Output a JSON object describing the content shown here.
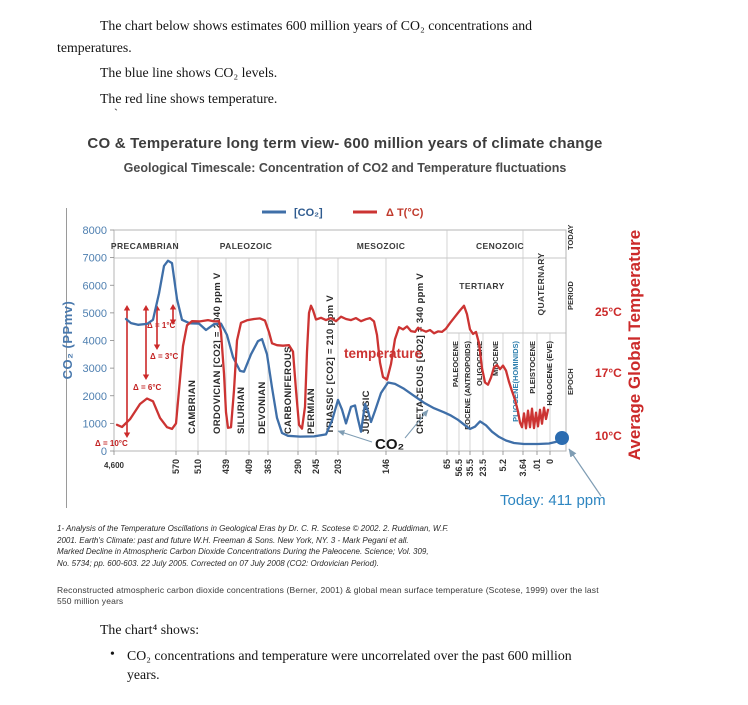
{
  "document": {
    "para1_line1": "The chart below shows estimates 600 million years of CO₂ concentrations and",
    "para1_line2": "temperatures.",
    "para2": "The blue line shows CO₂ levels.",
    "para3": "The red line shows temperature.",
    "stray_mark": "`",
    "chart_shows_line": "The chart⁴ shows:",
    "bullet_glyph": "•",
    "bullet1_line1": "CO₂ concentrations and temperature were uncorrelated over the past 600 million",
    "bullet1_line2": "years."
  },
  "footnotes": {
    "citation_lines": [
      "1- Analysis of the Temperature Oscillations in Geological Eras by Dr. C. R. Scotese ©  2002. 2. Ruddiman, W.F.",
      "2001. Earth's Climate: past and future W.H. Freeman & Sons. New York, NY. 3   - Mark Pegani  et all.",
      "Marked Decline in Atmospheric Carbon Dioxide Concentrations During the Paleocene. Science; Vol. 309,",
      "No. 5734; pp. 600-603. 22 July 2005. Corrected on 07 July 2008 (CO2: Ordovician Period)."
    ],
    "reconstructed_lines": [
      "Reconstructed atmospheric carbon dioxide concentrations (Berner, 2001) & global mean surface temperature (Scotese, 1999) over   the last",
      "550 million years"
    ]
  },
  "chart_data": {
    "type": "line",
    "title": "CO & Temperature long term view- 600 million years of climate change",
    "subtitle": "Geological Timescale: Concentration of CO2 and Temperature fluctuations",
    "legend": [
      {
        "label": "[CO₂]",
        "color": "#3f6fa8"
      },
      {
        "label": "Δ T(°C)",
        "color": "#cc3433"
      }
    ],
    "y_axis": {
      "title": "CO₂  (PPmv)",
      "ticks": [
        8000,
        7000,
        6000,
        5000,
        4000,
        3000,
        2000,
        1000,
        0
      ],
      "range": [
        0,
        8000
      ]
    },
    "x_axis": {
      "tick_labels": [
        "4,600",
        "570",
        "510",
        "439",
        "409",
        "363",
        "290",
        "245",
        "203",
        "146",
        "65",
        "56.5",
        "35.5",
        "23.5",
        "5.2",
        "3.64",
        ".01",
        "0"
      ]
    },
    "right_axis": {
      "title": "Average Global Temperature",
      "tick_labels": [
        "25°C",
        "17°C",
        "10°C"
      ]
    },
    "eras": [
      "PRECAMBRIAN",
      "PALEOZOIC",
      "MESOZOIC",
      "CENOZOIC"
    ],
    "cenozoic_bands": {
      "tertiary": "TERTIARY",
      "quaternary": "QUATERNARY"
    },
    "right_column": {
      "today": "TODAY",
      "period": "PERIOD",
      "epoch": "EPOCH"
    },
    "periods": [
      "CAMBRIAN",
      "ORDOVICIAN [CO2] = 2040 ppm V",
      "SILURIAN",
      "DEVONIAN",
      "CARBONIFEROUS",
      "PERMIAN",
      "TRIASSIC [CO2] = 210 ppm V",
      "JURASIC",
      "CRETACEOUS [CO2] = 340 ppm V"
    ],
    "epochs": [
      {
        "label": "PALEOCENE",
        "color": "#2b2b2b"
      },
      {
        "label": "EOCENE (ANTROPOIDS)",
        "color": "#2b2b2b"
      },
      {
        "label": "OLIGOCENE",
        "color": "#2b2b2b"
      },
      {
        "label": "MIOCENE",
        "color": "#2b2b2b"
      },
      {
        "label": "PLIOCENE(HOMINIDS)",
        "color": "#2e7fae"
      },
      {
        "label": "PLEISTOCENE",
        "color": "#2b2b2b"
      },
      {
        "label": "HOLOCENE (EVE)",
        "color": "#2b2b2b"
      }
    ],
    "delta_labels": [
      "Δ = 1°C",
      "Δ = 3°C",
      "Δ = 6°C",
      "Δ = 10°C"
    ],
    "annotations": {
      "temperature_label": "temperature",
      "co2_label": "CO₂",
      "today_label": "Today: 411 ppm"
    },
    "series": [
      {
        "name": "[CO₂]",
        "color": "#3f6fa8",
        "unit": "ppm CO₂",
        "points": [
          [
            126,
            4780
          ],
          [
            131,
            4630
          ],
          [
            138,
            4570
          ],
          [
            147,
            4600
          ],
          [
            153,
            4750
          ],
          [
            159,
            5700
          ],
          [
            164,
            6700
          ],
          [
            168,
            6890
          ],
          [
            172,
            6800
          ],
          [
            177,
            5500
          ],
          [
            182,
            4750
          ],
          [
            190,
            4620
          ],
          [
            199,
            4610
          ],
          [
            206,
            4380
          ],
          [
            214,
            4590
          ],
          [
            221,
            4610
          ],
          [
            227,
            4200
          ],
          [
            233,
            3400
          ],
          [
            240,
            2900
          ],
          [
            244,
            2870
          ],
          [
            251,
            3500
          ],
          [
            258,
            3980
          ],
          [
            262,
            4050
          ],
          [
            267,
            3500
          ],
          [
            272,
            2300
          ],
          [
            277,
            1200
          ],
          [
            282,
            650
          ],
          [
            288,
            550
          ],
          [
            300,
            520
          ],
          [
            314,
            530
          ],
          [
            326,
            600
          ],
          [
            332,
            1100
          ],
          [
            338,
            1850
          ],
          [
            342,
            1500
          ],
          [
            346,
            1000
          ],
          [
            351,
            1600
          ],
          [
            355,
            1650
          ],
          [
            358,
            1150
          ],
          [
            361,
            700
          ],
          [
            365,
            1700
          ],
          [
            368,
            1450
          ],
          [
            371,
            1050
          ],
          [
            375,
            1450
          ],
          [
            381,
            2100
          ],
          [
            388,
            2480
          ],
          [
            395,
            2430
          ],
          [
            404,
            2250
          ],
          [
            414,
            2000
          ],
          [
            424,
            1750
          ],
          [
            434,
            1550
          ],
          [
            444,
            1400
          ],
          [
            451,
            1280
          ],
          [
            458,
            1130
          ],
          [
            465,
            930
          ],
          [
            470,
            800
          ],
          [
            475,
            880
          ],
          [
            480,
            1070
          ],
          [
            486,
            930
          ],
          [
            492,
            700
          ],
          [
            499,
            510
          ],
          [
            506,
            380
          ],
          [
            514,
            290
          ],
          [
            524,
            255
          ],
          [
            538,
            255
          ],
          [
            549,
            270
          ],
          [
            556,
            330
          ],
          [
            561,
            420
          ]
        ]
      },
      {
        "name": "Δ T(°C)",
        "color": "#cc3433",
        "unit": "plotted on CO₂-axis equivalent",
        "points": [
          [
            117,
            950
          ],
          [
            122,
            870
          ],
          [
            130,
            1150
          ],
          [
            140,
            1700
          ],
          [
            147,
            1900
          ],
          [
            153,
            1800
          ],
          [
            160,
            1200
          ],
          [
            167,
            860
          ],
          [
            172,
            800
          ],
          [
            176,
            1000
          ],
          [
            179,
            2200
          ],
          [
            183,
            3800
          ],
          [
            187,
            4550
          ],
          [
            192,
            4700
          ],
          [
            200,
            4690
          ],
          [
            208,
            4740
          ],
          [
            214,
            4690
          ],
          [
            219,
            4700
          ],
          [
            221,
            4300
          ],
          [
            224,
            2800
          ],
          [
            226,
            1400
          ],
          [
            228,
            840
          ],
          [
            231,
            860
          ],
          [
            234,
            2200
          ],
          [
            237,
            4000
          ],
          [
            241,
            4640
          ],
          [
            247,
            4730
          ],
          [
            254,
            4780
          ],
          [
            260,
            4800
          ],
          [
            265,
            4720
          ],
          [
            269,
            4300
          ],
          [
            272,
            3900
          ],
          [
            277,
            3830
          ],
          [
            283,
            3810
          ],
          [
            289,
            3830
          ],
          [
            293,
            3600
          ],
          [
            296,
            2200
          ],
          [
            299,
            950
          ],
          [
            302,
            810
          ],
          [
            305,
            1600
          ],
          [
            307,
            3600
          ],
          [
            309,
            5000
          ],
          [
            311,
            5260
          ],
          [
            313,
            5100
          ],
          [
            316,
            4760
          ],
          [
            321,
            4820
          ],
          [
            326,
            4740
          ],
          [
            331,
            4810
          ],
          [
            336,
            4700
          ],
          [
            341,
            4860
          ],
          [
            346,
            4780
          ],
          [
            351,
            4740
          ],
          [
            356,
            4810
          ],
          [
            361,
            4700
          ],
          [
            366,
            4770
          ],
          [
            370,
            4810
          ],
          [
            374,
            4690
          ],
          [
            377,
            4200
          ],
          [
            380,
            3200
          ],
          [
            383,
            2680
          ],
          [
            387,
            2580
          ],
          [
            391,
            3150
          ],
          [
            395,
            4050
          ],
          [
            399,
            4480
          ],
          [
            403,
            4400
          ],
          [
            407,
            4510
          ],
          [
            411,
            4340
          ],
          [
            415,
            4310
          ],
          [
            418,
            4460
          ],
          [
            422,
            4380
          ],
          [
            426,
            4320
          ],
          [
            430,
            4380
          ],
          [
            434,
            4260
          ],
          [
            438,
            4330
          ],
          [
            442,
            4310
          ],
          [
            446,
            4430
          ],
          [
            450,
            4630
          ],
          [
            455,
            4860
          ],
          [
            460,
            5090
          ],
          [
            464,
            5260
          ],
          [
            467,
            4950
          ],
          [
            470,
            4400
          ],
          [
            473,
            4240
          ],
          [
            476,
            4310
          ],
          [
            479,
            3900
          ],
          [
            482,
            3000
          ],
          [
            485,
            2480
          ],
          [
            488,
            2400
          ],
          [
            491,
            2660
          ],
          [
            494,
            3030
          ],
          [
            497,
            3110
          ],
          [
            500,
            2960
          ],
          [
            503,
            3090
          ],
          [
            506,
            2910
          ],
          [
            509,
            2500
          ],
          [
            512,
            2170
          ],
          [
            515,
            1860
          ],
          [
            518,
            1430
          ],
          [
            520,
            1030
          ],
          [
            522,
            860
          ],
          [
            524,
            1360
          ],
          [
            526,
            820
          ],
          [
            528,
            1460
          ],
          [
            530,
            860
          ],
          [
            532,
            1530
          ],
          [
            534,
            830
          ],
          [
            536,
            1390
          ],
          [
            538,
            890
          ],
          [
            540,
            1490
          ],
          [
            542,
            990
          ],
          [
            544,
            1570
          ],
          [
            546,
            1160
          ],
          [
            548,
            1490
          ]
        ]
      }
    ]
  }
}
